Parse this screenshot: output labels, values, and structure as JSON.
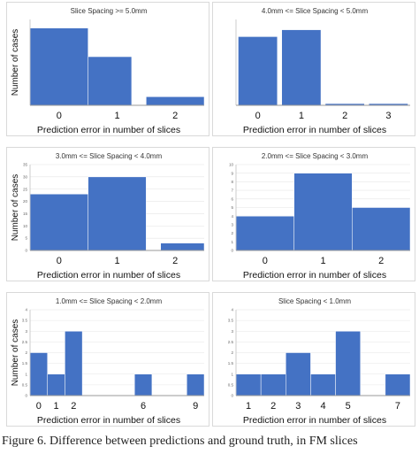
{
  "accent_color": "#4472c4",
  "chart_data": [
    {
      "type": "bar",
      "title": "Slice Spacing >= 5.0mm",
      "xlabel": "Prediction error in number of slices",
      "ylabel": "Number of cases",
      "bars": [
        {
          "x0": -0.5,
          "x1": 0.5,
          "value": 27
        },
        {
          "x0": 0.5,
          "x1": 1.25,
          "value": 17
        },
        {
          "x0": 1.5,
          "x1": 2.5,
          "value": 3
        }
      ],
      "xlim": [
        -0.5,
        2.5
      ],
      "ylim": [
        0,
        30
      ],
      "xticks": [
        0,
        1,
        2
      ],
      "xtick_labels": [
        "0",
        "1",
        "2"
      ],
      "yticks": [],
      "grid": false
    },
    {
      "type": "bar",
      "title": "4.0mm <= Slice Spacing < 5.0mm",
      "xlabel": "Prediction error in number of slices",
      "ylabel": "",
      "bars": [
        {
          "x0": -0.45,
          "x1": 0.45,
          "value": 40
        },
        {
          "x0": 0.55,
          "x1": 1.45,
          "value": 44
        },
        {
          "x0": 1.55,
          "x1": 2.45,
          "value": 1
        },
        {
          "x0": 2.55,
          "x1": 3.45,
          "value": 1
        }
      ],
      "xlim": [
        -0.5,
        3.5
      ],
      "ylim": [
        0,
        50
      ],
      "xticks": [
        0,
        1,
        2,
        3
      ],
      "xtick_labels": [
        "0",
        "1",
        "2",
        "3"
      ],
      "yticks": [],
      "grid": false
    },
    {
      "type": "bar",
      "title": "3.0mm <= Slice Spacing < 4.0mm",
      "xlabel": "Prediction error in number of slices",
      "ylabel": "Number of cases",
      "bars": [
        {
          "x0": -0.5,
          "x1": 0.5,
          "value": 23
        },
        {
          "x0": 0.5,
          "x1": 1.5,
          "value": 30
        },
        {
          "x0": 1.75,
          "x1": 2.5,
          "value": 3
        }
      ],
      "xlim": [
        -0.5,
        2.5
      ],
      "ylim": [
        0,
        35
      ],
      "xticks": [
        0,
        1,
        2
      ],
      "xtick_labels": [
        "0",
        "1",
        "2"
      ],
      "yticks": [
        0,
        5,
        10,
        15,
        20,
        25,
        30,
        35
      ],
      "ytick_labels": [
        "0",
        "5",
        "10",
        "15",
        "20",
        "25",
        "30",
        "35"
      ],
      "grid": true
    },
    {
      "type": "bar",
      "title": "2.0mm <= Slice Spacing < 3.0mm",
      "xlabel": "Prediction error in number of slices",
      "ylabel": "",
      "bars": [
        {
          "x0": -0.5,
          "x1": 0.5,
          "value": 4
        },
        {
          "x0": 0.5,
          "x1": 1.5,
          "value": 9
        },
        {
          "x0": 1.5,
          "x1": 2.5,
          "value": 5
        }
      ],
      "xlim": [
        -0.5,
        2.5
      ],
      "ylim": [
        0,
        10
      ],
      "xticks": [
        0,
        1,
        2
      ],
      "xtick_labels": [
        "0",
        "1",
        "2"
      ],
      "yticks": [
        0,
        1,
        2,
        3,
        4,
        5,
        6,
        7,
        8,
        9,
        10
      ],
      "ytick_labels": [
        "0",
        "1",
        "2",
        "3",
        "4",
        "5",
        "6",
        "7",
        "8",
        "9",
        "10"
      ],
      "grid": true
    },
    {
      "type": "bar",
      "title": "1.0mm <= Slice Spacing < 2.0mm",
      "xlabel": "Prediction error in number of slices",
      "ylabel": "Number of cases",
      "bars": [
        {
          "x0": -0.5,
          "x1": 0.5,
          "value": 2
        },
        {
          "x0": 0.5,
          "x1": 1.5,
          "value": 1
        },
        {
          "x0": 1.5,
          "x1": 2.5,
          "value": 3
        },
        {
          "x0": 5.5,
          "x1": 6.5,
          "value": 1
        },
        {
          "x0": 8.5,
          "x1": 9.5,
          "value": 1
        }
      ],
      "xlim": [
        -0.5,
        9.5
      ],
      "ylim": [
        0,
        4
      ],
      "xticks": [
        0,
        1,
        2,
        6,
        9
      ],
      "xtick_labels": [
        "0",
        "1",
        "2",
        "6",
        "9"
      ],
      "yticks": [
        0,
        0.5,
        1,
        1.5,
        2,
        2.5,
        3,
        3.5,
        4
      ],
      "ytick_labels": [
        "0",
        "0.5",
        "1",
        "1.5",
        "2",
        "2.5",
        "3",
        "3.5",
        "4"
      ],
      "grid": true
    },
    {
      "type": "bar",
      "title": "Slice Spacing < 1.0mm",
      "xlabel": "Prediction error in number of slices",
      "ylabel": "",
      "bars": [
        {
          "x0": 0.5,
          "x1": 1.5,
          "value": 1
        },
        {
          "x0": 1.5,
          "x1": 2.5,
          "value": 1
        },
        {
          "x0": 2.5,
          "x1": 3.5,
          "value": 2
        },
        {
          "x0": 3.5,
          "x1": 4.5,
          "value": 1
        },
        {
          "x0": 4.5,
          "x1": 5.5,
          "value": 3
        },
        {
          "x0": 6.5,
          "x1": 7.5,
          "value": 1
        }
      ],
      "xlim": [
        0.5,
        7.5
      ],
      "ylim": [
        0,
        4
      ],
      "xticks": [
        1,
        2,
        3,
        4,
        5,
        7
      ],
      "xtick_labels": [
        "1",
        "2",
        "3",
        "4",
        "5",
        "7"
      ],
      "yticks": [
        0,
        0.5,
        1,
        1.5,
        2,
        2.5,
        3,
        3.5,
        4
      ],
      "ytick_labels": [
        "0",
        "0.5",
        "1",
        "1.5",
        "2",
        "2.5",
        "3",
        "3.5",
        "4"
      ],
      "grid": true
    }
  ],
  "caption": "Figure 6. Difference between predictions and ground truth, in FM slices"
}
